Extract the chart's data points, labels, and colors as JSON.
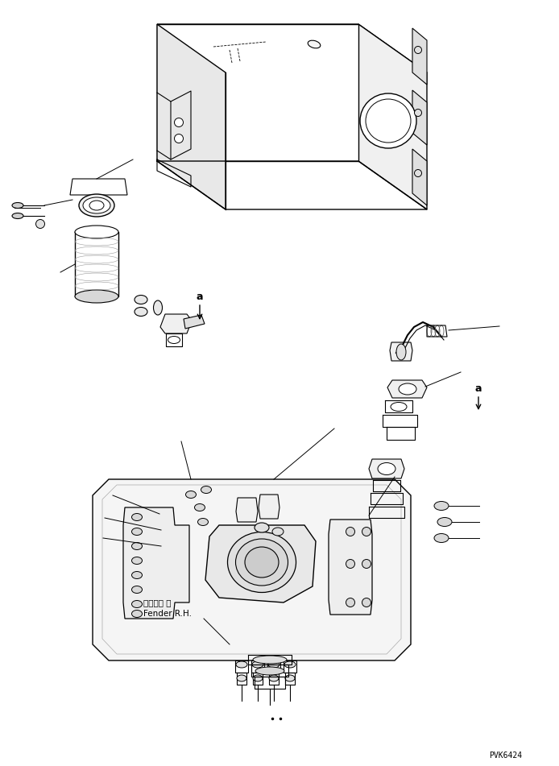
{
  "background_color": "#ffffff",
  "line_color": "#000000",
  "fig_width": 6.94,
  "fig_height": 9.51,
  "dpi": 100,
  "label_a1": "a",
  "label_a2": "a",
  "label_fender_jp": "フェンダ 右",
  "label_fender_en": "Fender R.H.",
  "part_code": "PVK6424"
}
